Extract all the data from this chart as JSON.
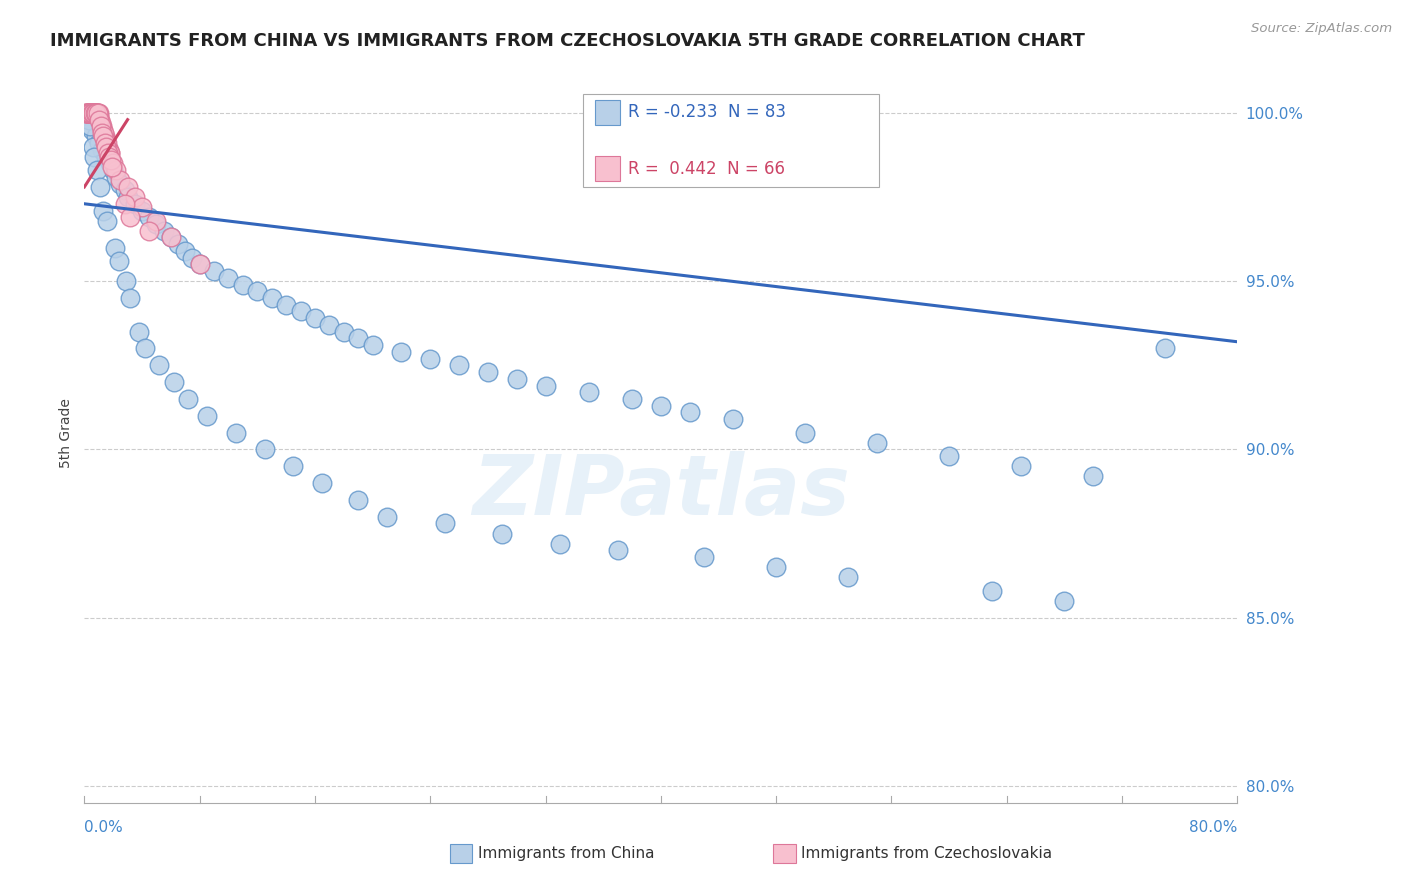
{
  "title": "IMMIGRANTS FROM CHINA VS IMMIGRANTS FROM CZECHOSLOVAKIA 5TH GRADE CORRELATION CHART",
  "source": "Source: ZipAtlas.com",
  "ylabel": "5th Grade",
  "ytick_vals": [
    80.0,
    85.0,
    90.0,
    95.0,
    100.0
  ],
  "ytick_labels": [
    "80.0%",
    "85.0%",
    "90.0%",
    "95.0%",
    "100.0%"
  ],
  "xlim": [
    0.0,
    80.0
  ],
  "ylim": [
    79.5,
    101.5
  ],
  "R_china": -0.233,
  "N_china": 83,
  "R_czech": 0.442,
  "N_czech": 66,
  "blue_color": "#B8D0E8",
  "blue_edge": "#6699CC",
  "pink_color": "#F8C0CF",
  "pink_edge": "#DD7799",
  "trend_blue": "#3366BB",
  "trend_pink": "#CC4466",
  "watermark": "ZIPatlas",
  "blue_trend_x": [
    0.0,
    80.0
  ],
  "blue_trend_y": [
    97.3,
    93.2
  ],
  "pink_trend_x": [
    0.0,
    3.0
  ],
  "pink_trend_y": [
    97.8,
    99.8
  ],
  "china_x": [
    0.5,
    0.8,
    1.0,
    1.2,
    1.5,
    1.8,
    2.0,
    2.2,
    2.5,
    2.8,
    3.0,
    3.5,
    4.0,
    4.5,
    5.0,
    5.5,
    6.0,
    6.5,
    7.0,
    7.5,
    8.0,
    9.0,
    10.0,
    11.0,
    12.0,
    13.0,
    14.0,
    15.0,
    16.0,
    17.0,
    18.0,
    19.0,
    20.0,
    22.0,
    24.0,
    26.0,
    28.0,
    30.0,
    32.0,
    35.0,
    38.0,
    40.0,
    42.0,
    45.0,
    50.0,
    55.0,
    60.0,
    65.0,
    70.0,
    75.0,
    0.3,
    0.4,
    0.6,
    0.7,
    0.9,
    1.1,
    1.3,
    1.6,
    2.1,
    2.4,
    2.9,
    3.2,
    3.8,
    4.2,
    5.2,
    6.2,
    7.2,
    8.5,
    10.5,
    12.5,
    14.5,
    16.5,
    19.0,
    21.0,
    25.0,
    29.0,
    33.0,
    37.0,
    43.0,
    48.0,
    53.0,
    63.0,
    68.0
  ],
  "china_y": [
    99.5,
    99.3,
    99.1,
    98.9,
    98.7,
    98.5,
    98.3,
    98.1,
    97.9,
    97.7,
    97.5,
    97.3,
    97.1,
    96.9,
    96.7,
    96.5,
    96.3,
    96.1,
    95.9,
    95.7,
    95.5,
    95.3,
    95.1,
    94.9,
    94.7,
    94.5,
    94.3,
    94.1,
    93.9,
    93.7,
    93.5,
    93.3,
    93.1,
    92.9,
    92.7,
    92.5,
    92.3,
    92.1,
    91.9,
    91.7,
    91.5,
    91.3,
    91.1,
    90.9,
    90.5,
    90.2,
    89.8,
    89.5,
    89.2,
    93.0,
    99.8,
    99.6,
    99.0,
    98.7,
    98.3,
    97.8,
    97.1,
    96.8,
    96.0,
    95.6,
    95.0,
    94.5,
    93.5,
    93.0,
    92.5,
    92.0,
    91.5,
    91.0,
    90.5,
    90.0,
    89.5,
    89.0,
    88.5,
    88.0,
    87.8,
    87.5,
    87.2,
    87.0,
    86.8,
    86.5,
    86.2,
    85.8,
    85.5
  ],
  "czech_x": [
    0.1,
    0.2,
    0.3,
    0.4,
    0.5,
    0.6,
    0.7,
    0.8,
    0.9,
    1.0,
    1.1,
    1.2,
    1.3,
    1.4,
    1.5,
    1.6,
    1.7,
    1.8,
    0.15,
    0.25,
    0.35,
    0.45,
    0.55,
    0.65,
    0.75,
    0.85,
    0.95,
    1.05,
    1.15,
    1.25,
    1.35,
    1.45,
    1.55,
    1.65,
    1.75,
    0.12,
    0.22,
    0.32,
    0.42,
    0.52,
    0.62,
    0.72,
    0.82,
    0.92,
    1.02,
    1.12,
    1.22,
    1.32,
    1.42,
    1.52,
    1.62,
    1.72,
    2.0,
    2.2,
    2.5,
    3.0,
    3.5,
    4.0,
    5.0,
    6.0,
    8.0,
    1.85,
    1.95,
    2.8,
    3.2,
    4.5
  ],
  "czech_y": [
    100.0,
    100.0,
    100.0,
    100.0,
    100.0,
    100.0,
    100.0,
    100.0,
    100.0,
    100.0,
    99.8,
    99.6,
    99.5,
    99.3,
    99.2,
    99.0,
    98.9,
    98.8,
    100.0,
    100.0,
    100.0,
    100.0,
    100.0,
    100.0,
    100.0,
    100.0,
    100.0,
    99.9,
    99.7,
    99.5,
    99.4,
    99.2,
    99.1,
    98.9,
    98.8,
    100.0,
    100.0,
    100.0,
    100.0,
    100.0,
    100.0,
    100.0,
    100.0,
    100.0,
    99.8,
    99.6,
    99.4,
    99.3,
    99.1,
    99.0,
    98.8,
    98.7,
    98.5,
    98.3,
    98.0,
    97.8,
    97.5,
    97.2,
    96.8,
    96.3,
    95.5,
    98.6,
    98.4,
    97.3,
    96.9,
    96.5
  ]
}
